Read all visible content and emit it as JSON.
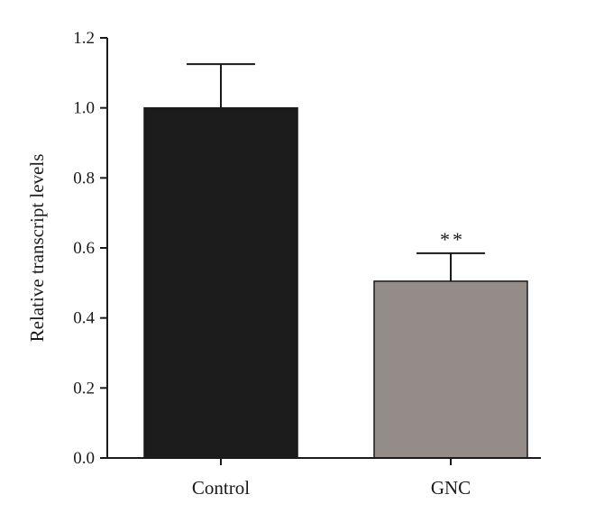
{
  "chart_data": {
    "type": "bar",
    "categories": [
      "Control",
      "GNC"
    ],
    "values": [
      1.0,
      0.505
    ],
    "errors": [
      0.125,
      0.08
    ],
    "bar_colors": [
      "#1c1c1c",
      "#948c88"
    ],
    "ylabel": "Relative transcript levels",
    "xlabel": "",
    "ylim": [
      0,
      1.2
    ],
    "yticks": [
      0.0,
      0.2,
      0.4,
      0.6,
      0.8,
      1.0,
      1.2
    ],
    "ytick_labels": [
      "0.0",
      "0.2",
      "0.4",
      "0.6",
      "0.8",
      "1.0",
      "1.2"
    ],
    "annotations": [
      {
        "category": "GNC",
        "text": "**"
      }
    ],
    "grid": false,
    "legend": "none"
  }
}
